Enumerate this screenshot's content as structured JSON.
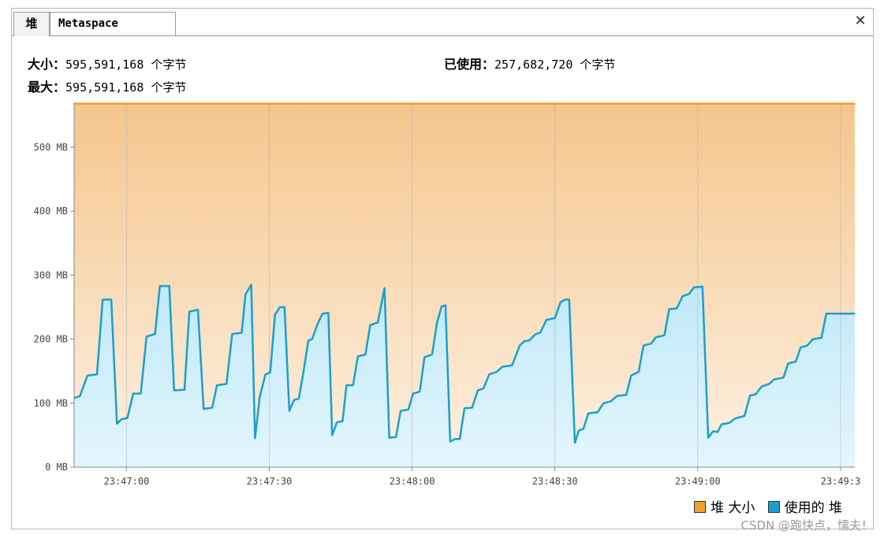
{
  "tabs": [
    {
      "label": "堆",
      "active": true
    },
    {
      "label": "Metaspace",
      "active": false
    }
  ],
  "close_glyph": "✕",
  "summary": {
    "size_label": "大小：",
    "size_value": "595,591,168 个字节",
    "max_label": "最大：",
    "max_value": "595,591,168 个字节",
    "used_label": "已使用：",
    "used_value": "257,682,720 个字节"
  },
  "legend": {
    "heap_size": "堆 大小",
    "heap_used": "使用的 堆"
  },
  "colors": {
    "heap_size": "#f0a030",
    "heap_used": "#1aa0cc"
  },
  "watermark": "CSDN @跑快点，懦夫！",
  "chart_data": {
    "type": "area",
    "x_unit": "seconds",
    "xlim": [
      0,
      82
    ],
    "ylim": [
      0,
      570
    ],
    "yticks": [
      0,
      100,
      200,
      300,
      400,
      500
    ],
    "ytick_labels": [
      "0 MB",
      "100 MB",
      "200 MB",
      "300 MB",
      "400 MB",
      "500 MB"
    ],
    "xticks": [
      {
        "t": 5.5,
        "label": "23:47:00"
      },
      {
        "t": 20.5,
        "label": "23:47:30"
      },
      {
        "t": 35.5,
        "label": "23:48:00"
      },
      {
        "t": 50.5,
        "label": "23:48:30"
      },
      {
        "t": 65.5,
        "label": "23:49:00"
      },
      {
        "t": 80.5,
        "label": "23:49:3"
      }
    ],
    "series": [
      {
        "name": "堆 大小",
        "points": [
          [
            0,
            568
          ],
          [
            82,
            568
          ]
        ]
      },
      {
        "name": "使用的 堆",
        "points": [
          [
            0,
            108
          ],
          [
            0.6,
            111
          ],
          [
            1.4,
            143
          ],
          [
            2.4,
            145
          ],
          [
            3,
            262
          ],
          [
            3.9,
            262
          ],
          [
            4.5,
            68
          ],
          [
            5,
            75
          ],
          [
            5.6,
            77
          ],
          [
            6.2,
            115
          ],
          [
            7,
            115
          ],
          [
            7.6,
            204
          ],
          [
            8.5,
            208
          ],
          [
            9,
            283
          ],
          [
            10,
            283
          ],
          [
            10.5,
            120
          ],
          [
            11.6,
            121
          ],
          [
            12.1,
            243
          ],
          [
            13,
            246
          ],
          [
            13.6,
            91
          ],
          [
            14.5,
            93
          ],
          [
            15,
            128
          ],
          [
            16,
            130
          ],
          [
            16.6,
            208
          ],
          [
            17.6,
            210
          ],
          [
            18,
            270
          ],
          [
            18.6,
            285
          ],
          [
            19,
            45
          ],
          [
            19.5,
            110
          ],
          [
            20.1,
            145
          ],
          [
            20.6,
            148
          ],
          [
            21.1,
            238
          ],
          [
            21.6,
            250
          ],
          [
            22.1,
            250
          ],
          [
            22.6,
            88
          ],
          [
            23.1,
            105
          ],
          [
            23.6,
            107
          ],
          [
            24.1,
            150
          ],
          [
            24.6,
            198
          ],
          [
            25,
            200
          ],
          [
            25.6,
            225
          ],
          [
            26.1,
            240
          ],
          [
            26.7,
            241
          ],
          [
            27.1,
            50
          ],
          [
            27.6,
            70
          ],
          [
            28.2,
            72
          ],
          [
            28.6,
            128
          ],
          [
            29.3,
            128
          ],
          [
            29.8,
            173
          ],
          [
            30.6,
            176
          ],
          [
            31.1,
            222
          ],
          [
            31.9,
            226
          ],
          [
            32.6,
            280
          ],
          [
            33.1,
            46
          ],
          [
            33.8,
            47
          ],
          [
            34.3,
            88
          ],
          [
            35.1,
            90
          ],
          [
            35.6,
            115
          ],
          [
            36.3,
            118
          ],
          [
            36.8,
            172
          ],
          [
            37.6,
            176
          ],
          [
            38.1,
            225
          ],
          [
            38.6,
            251
          ],
          [
            39,
            253
          ],
          [
            39.5,
            40
          ],
          [
            40,
            44
          ],
          [
            40.5,
            44
          ],
          [
            41,
            92
          ],
          [
            41.8,
            93
          ],
          [
            42.4,
            120
          ],
          [
            43,
            123
          ],
          [
            43.6,
            145
          ],
          [
            44.4,
            149
          ],
          [
            45,
            157
          ],
          [
            46,
            159
          ],
          [
            46.8,
            190
          ],
          [
            47.3,
            197
          ],
          [
            47.8,
            198
          ],
          [
            48.4,
            207
          ],
          [
            49,
            211
          ],
          [
            49.6,
            230
          ],
          [
            50.5,
            233
          ],
          [
            51.1,
            258
          ],
          [
            51.6,
            262
          ],
          [
            52,
            262
          ],
          [
            52.6,
            38
          ],
          [
            53,
            57
          ],
          [
            53.5,
            60
          ],
          [
            54,
            84
          ],
          [
            55,
            86
          ],
          [
            55.6,
            100
          ],
          [
            56.4,
            103
          ],
          [
            57,
            111
          ],
          [
            58,
            113
          ],
          [
            58.5,
            143
          ],
          [
            59.3,
            149
          ],
          [
            59.8,
            190
          ],
          [
            60.6,
            193
          ],
          [
            61.1,
            203
          ],
          [
            62,
            206
          ],
          [
            62.5,
            247
          ],
          [
            63.3,
            248
          ],
          [
            63.9,
            267
          ],
          [
            64.6,
            271
          ],
          [
            65.1,
            281
          ],
          [
            66,
            282
          ],
          [
            66.6,
            46
          ],
          [
            67.1,
            56
          ],
          [
            67.6,
            55
          ],
          [
            68,
            67
          ],
          [
            68.8,
            69
          ],
          [
            69.4,
            76
          ],
          [
            70.4,
            80
          ],
          [
            71,
            112
          ],
          [
            71.6,
            114
          ],
          [
            72.2,
            126
          ],
          [
            73,
            130
          ],
          [
            73.5,
            137
          ],
          [
            74.5,
            140
          ],
          [
            75,
            162
          ],
          [
            75.8,
            165
          ],
          [
            76.3,
            187
          ],
          [
            77,
            190
          ],
          [
            77.6,
            200
          ],
          [
            78.5,
            202
          ],
          [
            79,
            240
          ],
          [
            82,
            240
          ]
        ]
      }
    ]
  }
}
